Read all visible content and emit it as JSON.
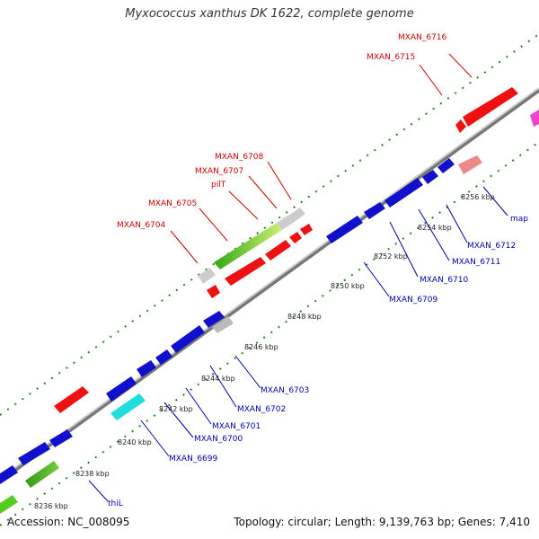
{
  "title": "Myxococcus xanthus DK 1622, complete genome",
  "footer": {
    "accession": "Accession: NC_008095",
    "summary": "Topology: circular; Length: 9,139,763 bp; Genes: 7,410"
  },
  "colors": {
    "forward_gene": "#ee1111",
    "reverse_gene": "#1111cc",
    "rna_gene": "#55cc22",
    "pseudo": "#bbbbbb",
    "backbone": "#9a9a9a",
    "dots": "#33aa33"
  },
  "kbp_labels": [
    "8236 kbp",
    "8238 kbp",
    "8240 kbp",
    "8242 kbp",
    "8244 kbp",
    "8246 kbp",
    "8248 kbp",
    "8250 kbp",
    "8252 kbp",
    "8254 kbp",
    "8256 kbp"
  ],
  "gene_labels_top": [
    "MXAN_6716",
    "MXAN_6715",
    "MXAN_6708",
    "MXAN_6707",
    "pilT",
    "MXAN_6705",
    "MXAN_6704"
  ],
  "gene_labels_bottom": [
    "map",
    "MXAN_6712",
    "MXAN_6711",
    "MXAN_6710",
    "MXAN_6709",
    "MXAN_6703",
    "MXAN_6702",
    "MXAN_6701",
    "MXAN_6700",
    "MXAN_6699",
    "thiL"
  ]
}
